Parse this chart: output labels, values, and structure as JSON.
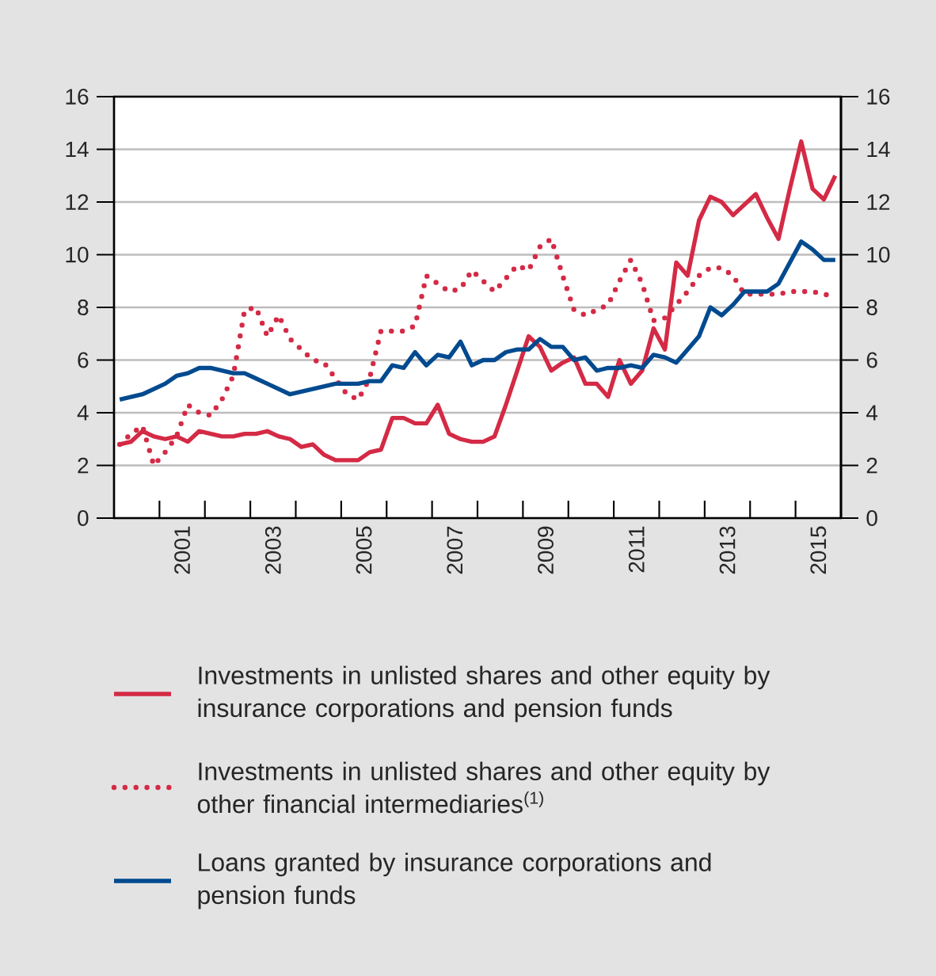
{
  "chart_data": {
    "type": "line",
    "x": [
      2000.125,
      2000.375,
      2000.625,
      2000.875,
      2001.125,
      2001.375,
      2001.625,
      2001.875,
      2002.125,
      2002.375,
      2002.625,
      2002.875,
      2003.125,
      2003.375,
      2003.625,
      2003.875,
      2004.125,
      2004.375,
      2004.625,
      2004.875,
      2005.125,
      2005.375,
      2005.625,
      2005.875,
      2006.125,
      2006.375,
      2006.625,
      2006.875,
      2007.125,
      2007.375,
      2007.625,
      2007.875,
      2008.125,
      2008.375,
      2008.625,
      2008.875,
      2009.125,
      2009.375,
      2009.625,
      2009.875,
      2010.125,
      2010.375,
      2010.625,
      2010.875,
      2011.125,
      2011.375,
      2011.625,
      2011.875,
      2012.125,
      2012.375,
      2012.625,
      2012.875,
      2013.125,
      2013.375,
      2013.625,
      2013.875,
      2014.125,
      2014.375,
      2014.625,
      2014.875,
      2015.125,
      2015.375,
      2015.625,
      2015.875
    ],
    "series": [
      {
        "name": "Investments in unlisted shares and other equity by insurance corporations and pension funds",
        "color": "#d42a45",
        "values": [
          2.8,
          2.9,
          3.3,
          3.1,
          3.0,
          3.1,
          2.9,
          3.3,
          3.2,
          3.1,
          3.1,
          3.2,
          3.2,
          3.3,
          3.1,
          3.0,
          2.7,
          2.8,
          2.4,
          2.2,
          2.2,
          2.2,
          2.5,
          2.6,
          3.8,
          3.8,
          3.6,
          3.6,
          4.3,
          3.2,
          3.0,
          2.9,
          2.9,
          3.1,
          4.3,
          5.6,
          6.9,
          6.5,
          5.6,
          5.9,
          6.1,
          5.1,
          5.1,
          4.6,
          6.0,
          5.1,
          5.6,
          7.2,
          6.4,
          9.7,
          9.2,
          11.3,
          12.2,
          12.0,
          11.5,
          11.9,
          12.3,
          11.4,
          10.6,
          12.5,
          14.3,
          12.5,
          12.1,
          13.0
        ]
      },
      {
        "name": "Investments in unlisted shares and other equity by other financial intermediaries$^{(1)}$",
        "color": "#d42a45",
        "line_style": "dotted",
        "values": [
          2.8,
          3.2,
          3.5,
          2.0,
          2.5,
          3.1,
          4.3,
          4.0,
          3.9,
          4.5,
          5.4,
          7.9,
          8.0,
          6.9,
          7.7,
          6.8,
          6.4,
          6.0,
          5.9,
          5.3,
          4.7,
          4.5,
          5.3,
          7.1,
          7.1,
          7.1,
          7.3,
          9.2,
          8.9,
          8.6,
          8.7,
          9.4,
          9.0,
          8.6,
          9.1,
          9.6,
          9.4,
          10.3,
          10.6,
          9.2,
          7.9,
          7.7,
          7.9,
          8.1,
          9.0,
          9.8,
          8.9,
          7.5,
          7.6,
          8.1,
          8.6,
          9.2,
          9.5,
          9.5,
          9.2,
          8.5,
          8.5,
          8.5,
          8.5,
          8.6,
          8.6,
          8.6,
          8.5,
          8.4
        ]
      },
      {
        "name": "Loans granted by insurance corporations and pension funds",
        "color": "#004a8f",
        "values": [
          4.5,
          4.6,
          4.7,
          4.9,
          5.1,
          5.4,
          5.5,
          5.7,
          5.7,
          5.6,
          5.5,
          5.5,
          5.3,
          5.1,
          4.9,
          4.7,
          4.8,
          4.9,
          5.0,
          5.1,
          5.1,
          5.1,
          5.2,
          5.2,
          5.8,
          5.7,
          6.3,
          5.8,
          6.2,
          6.1,
          6.7,
          5.8,
          6.0,
          6.0,
          6.3,
          6.4,
          6.4,
          6.8,
          6.5,
          6.5,
          6.0,
          6.1,
          5.6,
          5.7,
          5.7,
          5.8,
          5.7,
          6.2,
          6.1,
          5.9,
          6.4,
          6.9,
          8.0,
          7.7,
          8.1,
          8.6,
          8.6,
          8.6,
          8.9,
          9.7,
          10.5,
          10.2,
          9.8,
          9.8
        ]
      }
    ],
    "xlim": [
      2000,
      2016
    ],
    "xticks": [
      {
        "value": 2001,
        "label": null
      },
      {
        "value": 2002,
        "label": null
      },
      {
        "value": 2003,
        "label": null
      },
      {
        "value": 2004,
        "label": null
      },
      {
        "value": 2005,
        "label": null
      },
      {
        "value": 2006,
        "label": null
      },
      {
        "value": 2007,
        "label": null
      },
      {
        "value": 2008,
        "label": null
      },
      {
        "value": 2009,
        "label": null
      },
      {
        "value": 2010,
        "label": null
      },
      {
        "value": 2011,
        "label": null
      },
      {
        "value": 2012,
        "label": null
      },
      {
        "value": 2013,
        "label": null
      },
      {
        "value": 2014,
        "label": null
      },
      {
        "value": 2015,
        "label": null
      },
      {
        "value": 2001.5,
        "label": "2001"
      },
      {
        "value": 2003.5,
        "label": "2003"
      },
      {
        "value": 2005.5,
        "label": "2005"
      },
      {
        "value": 2007.5,
        "label": "2007"
      },
      {
        "value": 2009.5,
        "label": "2009"
      },
      {
        "value": 2011.5,
        "label": "2011"
      },
      {
        "value": 2013.5,
        "label": "2013"
      },
      {
        "value": 2015.5,
        "label": "2015"
      }
    ],
    "ylim": [
      0,
      16
    ],
    "yticks": [
      0,
      2,
      4,
      6,
      8,
      10,
      12,
      14,
      16
    ],
    "y2lim": [
      0,
      16
    ],
    "y2ticks": [
      0,
      2,
      4,
      6,
      8,
      10,
      12,
      14,
      16
    ],
    "grid": "y",
    "legend": "bottom"
  }
}
